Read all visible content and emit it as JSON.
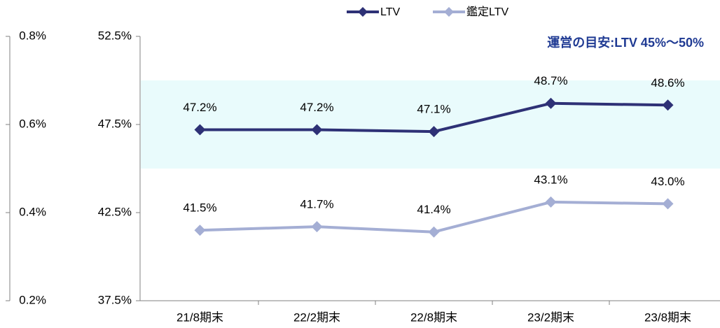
{
  "chart_data": {
    "type": "line",
    "categories": [
      "21/8期末",
      "22/2期末",
      "22/8期末",
      "23/2期末",
      "23/8期末"
    ],
    "series": [
      {
        "name": "LTV",
        "color": "#2e3176",
        "values": [
          47.2,
          47.2,
          47.1,
          48.7,
          48.6
        ],
        "value_labels": [
          "47.2%",
          "47.2%",
          "47.1%",
          "48.7%",
          "48.6%"
        ]
      },
      {
        "name": "鑑定LTV",
        "color": "#a4aed4",
        "values": [
          41.5,
          41.7,
          41.4,
          43.1,
          43.0
        ],
        "value_labels": [
          "41.5%",
          "41.7%",
          "41.4%",
          "43.1%",
          "43.0%"
        ]
      }
    ],
    "ylim": [
      37.5,
      52.5
    ],
    "yticks": [
      {
        "value": 37.5,
        "label": "37.5%"
      },
      {
        "value": 42.5,
        "label": "42.5%"
      },
      {
        "value": 47.5,
        "label": "47.5%"
      },
      {
        "value": 52.5,
        "label": "52.5%"
      }
    ],
    "y2lim": [
      0.2,
      0.8
    ],
    "y2ticks": [
      {
        "value": 0.2,
        "label": "0.2%"
      },
      {
        "value": 0.4,
        "label": "0.4%"
      },
      {
        "value": 0.6,
        "label": "0.6%"
      },
      {
        "value": 0.8,
        "label": "0.8%"
      }
    ],
    "annotation": "運営の目安:LTV 45%～50%",
    "band": [
      45,
      50
    ],
    "band_color": "#e9fbfc",
    "legend": "top"
  }
}
